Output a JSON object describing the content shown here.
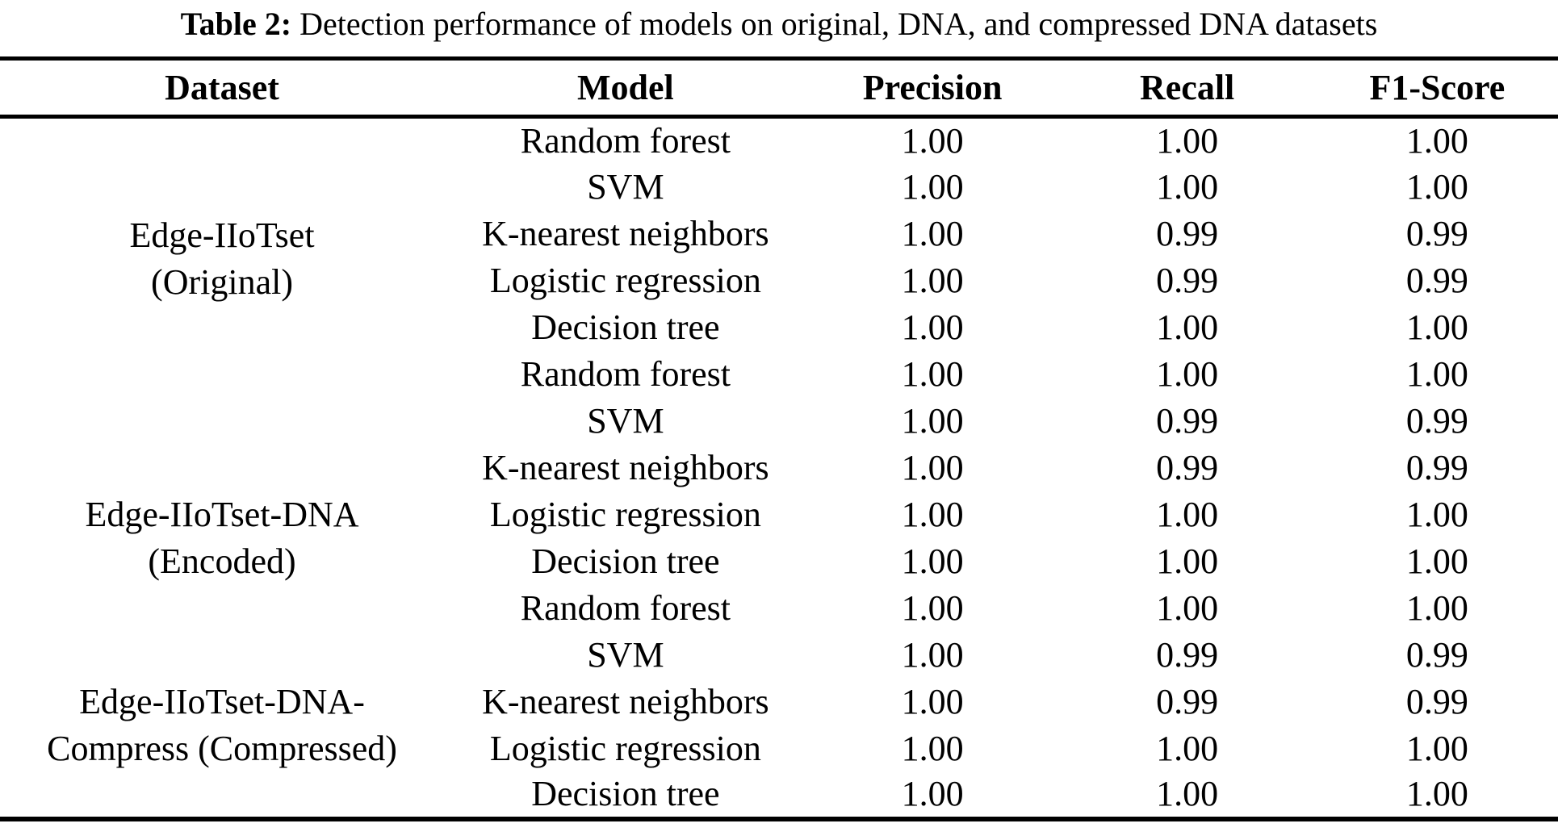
{
  "caption": {
    "label": "Table 2:",
    "text": " Detection performance of models on original, DNA, and compressed DNA datasets"
  },
  "table": {
    "headers": [
      "Dataset",
      "Model",
      "Precision",
      "Recall",
      "F1-Score"
    ],
    "groups": [
      {
        "dataset_lines": [
          "Edge-IIoTset",
          "(Original)"
        ],
        "rows": [
          {
            "model": "Random forest",
            "precision": "1.00",
            "recall": "1.00",
            "f1": "1.00"
          },
          {
            "model": "SVM",
            "precision": "1.00",
            "recall": "1.00",
            "f1": "1.00"
          },
          {
            "model": "K-nearest neighbors",
            "precision": "1.00",
            "recall": "0.99",
            "f1": "0.99"
          },
          {
            "model": "Logistic regression",
            "precision": "1.00",
            "recall": "0.99",
            "f1": "0.99"
          },
          {
            "model": "Decision tree",
            "precision": "1.00",
            "recall": "1.00",
            "f1": "1.00"
          }
        ]
      },
      {
        "dataset_lines": [
          "Edge-IIoTset-DNA",
          "(Encoded)"
        ],
        "rows": [
          {
            "model": "Random forest",
            "precision": "1.00",
            "recall": "1.00",
            "f1": "1.00"
          },
          {
            "model": "SVM",
            "precision": "1.00",
            "recall": "0.99",
            "f1": "0.99"
          },
          {
            "model": "K-nearest neighbors",
            "precision": "1.00",
            "recall": "0.99",
            "f1": "0.99"
          },
          {
            "model": "Logistic regression",
            "precision": "1.00",
            "recall": "1.00",
            "f1": "1.00"
          },
          {
            "model": "Decision tree",
            "precision": "1.00",
            "recall": "1.00",
            "f1": "1.00"
          }
        ]
      },
      {
        "dataset_lines": [
          "Edge-IIoTset-DNA-",
          "Compress (Compressed)"
        ],
        "rows": [
          {
            "model": "Random forest",
            "precision": "1.00",
            "recall": "1.00",
            "f1": "1.00"
          },
          {
            "model": "SVM",
            "precision": "1.00",
            "recall": "0.99",
            "f1": "0.99"
          },
          {
            "model": "K-nearest neighbors",
            "precision": "1.00",
            "recall": "0.99",
            "f1": "0.99"
          },
          {
            "model": "Logistic regression",
            "precision": "1.00",
            "recall": "1.00",
            "f1": "1.00"
          },
          {
            "model": "Decision tree",
            "precision": "1.00",
            "recall": "1.00",
            "f1": "1.00"
          }
        ]
      }
    ]
  }
}
